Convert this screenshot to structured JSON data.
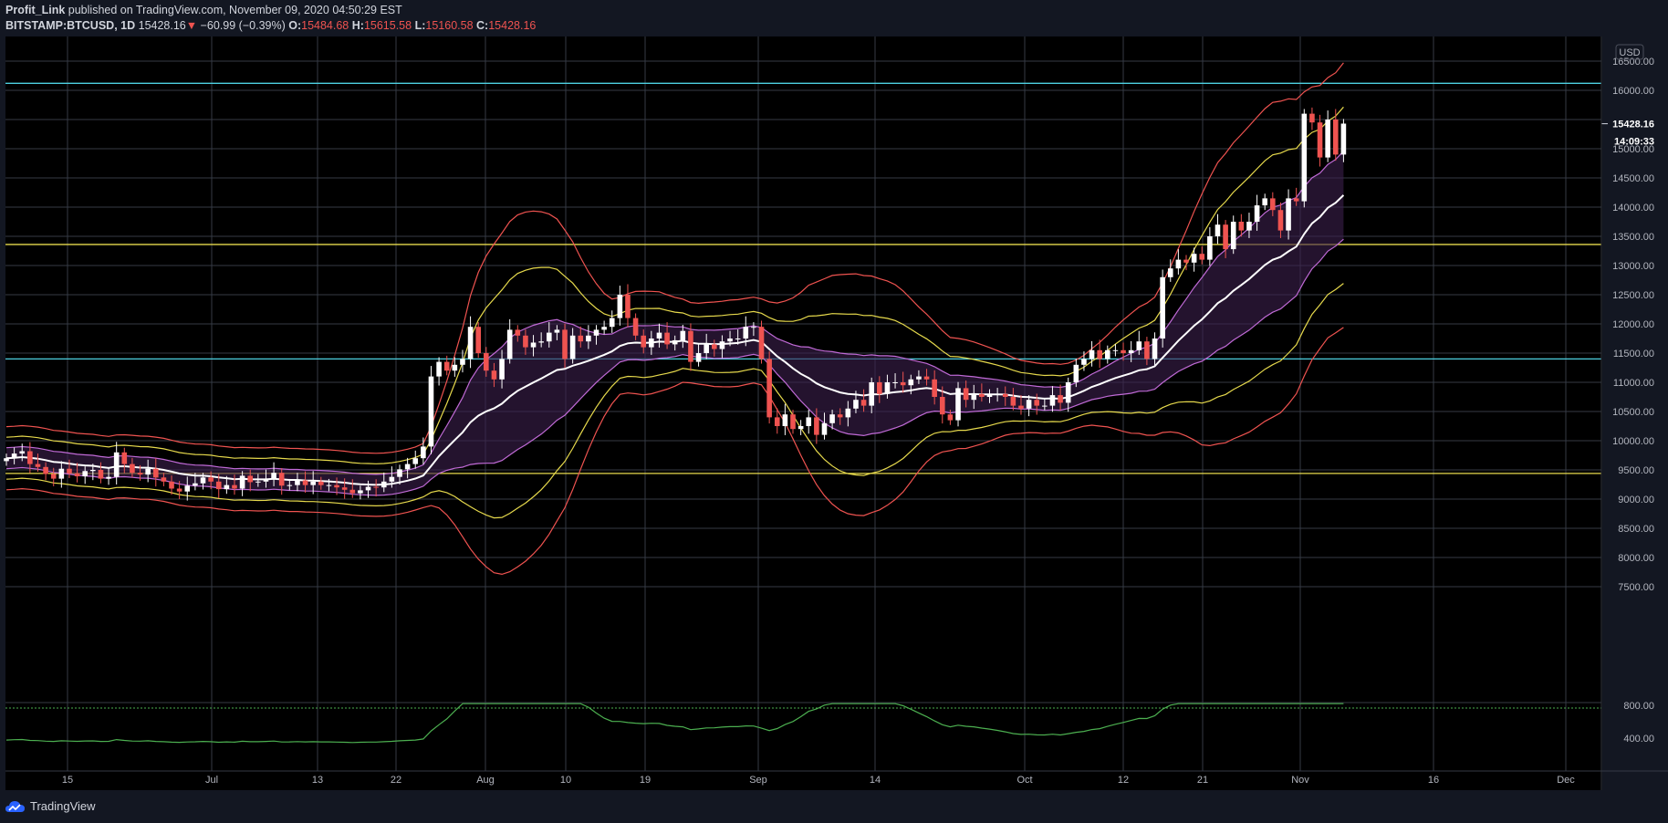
{
  "header": {
    "author": "Profit_Link",
    "published_text": "published on TradingView.com, November 09, 2020 04:50:29 EST",
    "symbol": "BITSTAMP:BTCUSD, 1D",
    "last": "15428.16",
    "change_arrow": "▼",
    "change": "−60.99 (−0.39%)",
    "o_label": "O:",
    "o_value": "15484.68",
    "h_label": "H:",
    "h_value": "15615.58",
    "l_label": "L:",
    "l_value": "15160.58",
    "c_label": "C:",
    "c_value": "15428.16"
  },
  "price_axis": {
    "currency": "USD",
    "ticks": [
      "16500.00",
      "16000.00",
      "15000.00",
      "14500.00",
      "14000.00",
      "13500.00",
      "13000.00",
      "12500.00",
      "12000.00",
      "11500.00",
      "11000.00",
      "10500.00",
      "10000.00",
      "9500.00",
      "9000.00",
      "8500.00",
      "8000.00",
      "7500.00"
    ],
    "last_price": "15428.16",
    "countdown": "14:09:33"
  },
  "volume_axis": {
    "ticks": [
      "800.00",
      "400.00"
    ]
  },
  "time_axis": {
    "ticks": [
      "15",
      "Jul",
      "13",
      "22",
      "Aug",
      "10",
      "19",
      "Sep",
      "14",
      "Oct",
      "12",
      "21",
      "Nov",
      "16",
      "Dec"
    ]
  },
  "footer": {
    "brand": "TradingView"
  },
  "colors": {
    "background": "#131722",
    "grid": "#363a45",
    "up_candle": "#ffffff",
    "down_candle": "#ef5350",
    "cyan_line": "#4dd0e1",
    "yellow_line": "#e6d94c",
    "inner_band": "#c06ad6",
    "outer_band_yellow": "#e6d94c",
    "outer_band_red": "#ef5350",
    "indicator": "#4caf50"
  },
  "chart_data": {
    "type": "candlestick",
    "ylim": [
      7250,
      16800
    ],
    "horizontal_levels": [
      {
        "color": "cyan",
        "value": 16120
      },
      {
        "color": "cyan",
        "value": 11400
      },
      {
        "color": "yellow",
        "value": 13360
      },
      {
        "color": "yellow",
        "value": 9440
      }
    ],
    "closes": [
      9700,
      9780,
      9820,
      9600,
      9550,
      9430,
      9350,
      9520,
      9440,
      9390,
      9480,
      9500,
      9350,
      9380,
      9800,
      9600,
      9450,
      9420,
      9520,
      9370,
      9300,
      9180,
      9130,
      9230,
      9270,
      9370,
      9300,
      9170,
      9240,
      9180,
      9400,
      9290,
      9300,
      9350,
      9450,
      9230,
      9240,
      9320,
      9240,
      9300,
      9240,
      9240,
      9200,
      9160,
      9100,
      9150,
      9210,
      9200,
      9300,
      9380,
      9510,
      9600,
      9700,
      9900,
      11100,
      11350,
      11200,
      11300,
      11400,
      11950,
      11500,
      11200,
      11050,
      11400,
      11900,
      11800,
      11600,
      11680,
      11700,
      11850,
      11900,
      11400,
      11800,
      11700,
      11800,
      11900,
      11950,
      12100,
      12500,
      12100,
      11800,
      11600,
      11750,
      11850,
      11650,
      11720,
      11880,
      11350,
      11500,
      11650,
      11570,
      11700,
      11750,
      11750,
      11950,
      11950,
      11400,
      10400,
      10250,
      10450,
      10200,
      10250,
      10400,
      10100,
      10300,
      10450,
      10400,
      10550,
      10700,
      10600,
      11000,
      10800,
      11000,
      11000,
      10950,
      11050,
      11100,
      11050,
      10750,
      10450,
      10350,
      10900,
      10700,
      10800,
      10750,
      10800,
      10800,
      10750,
      10600,
      10550,
      10700,
      10600,
      10600,
      10780,
      10650,
      11000,
      11300,
      11400,
      11550,
      11400,
      11550,
      11550,
      11500,
      11550,
      11700,
      11400,
      11750,
      12800,
      12950,
      13100,
      13050,
      13200,
      13100,
      13500,
      13700,
      13280,
      13750,
      13600,
      13750,
      14030,
      14150,
      13950,
      13600,
      14150,
      14100,
      15600,
      15450,
      14850,
      15500,
      14900,
      15430
    ],
    "indicator": {
      "ticks": [
        800,
        400
      ]
    }
  }
}
